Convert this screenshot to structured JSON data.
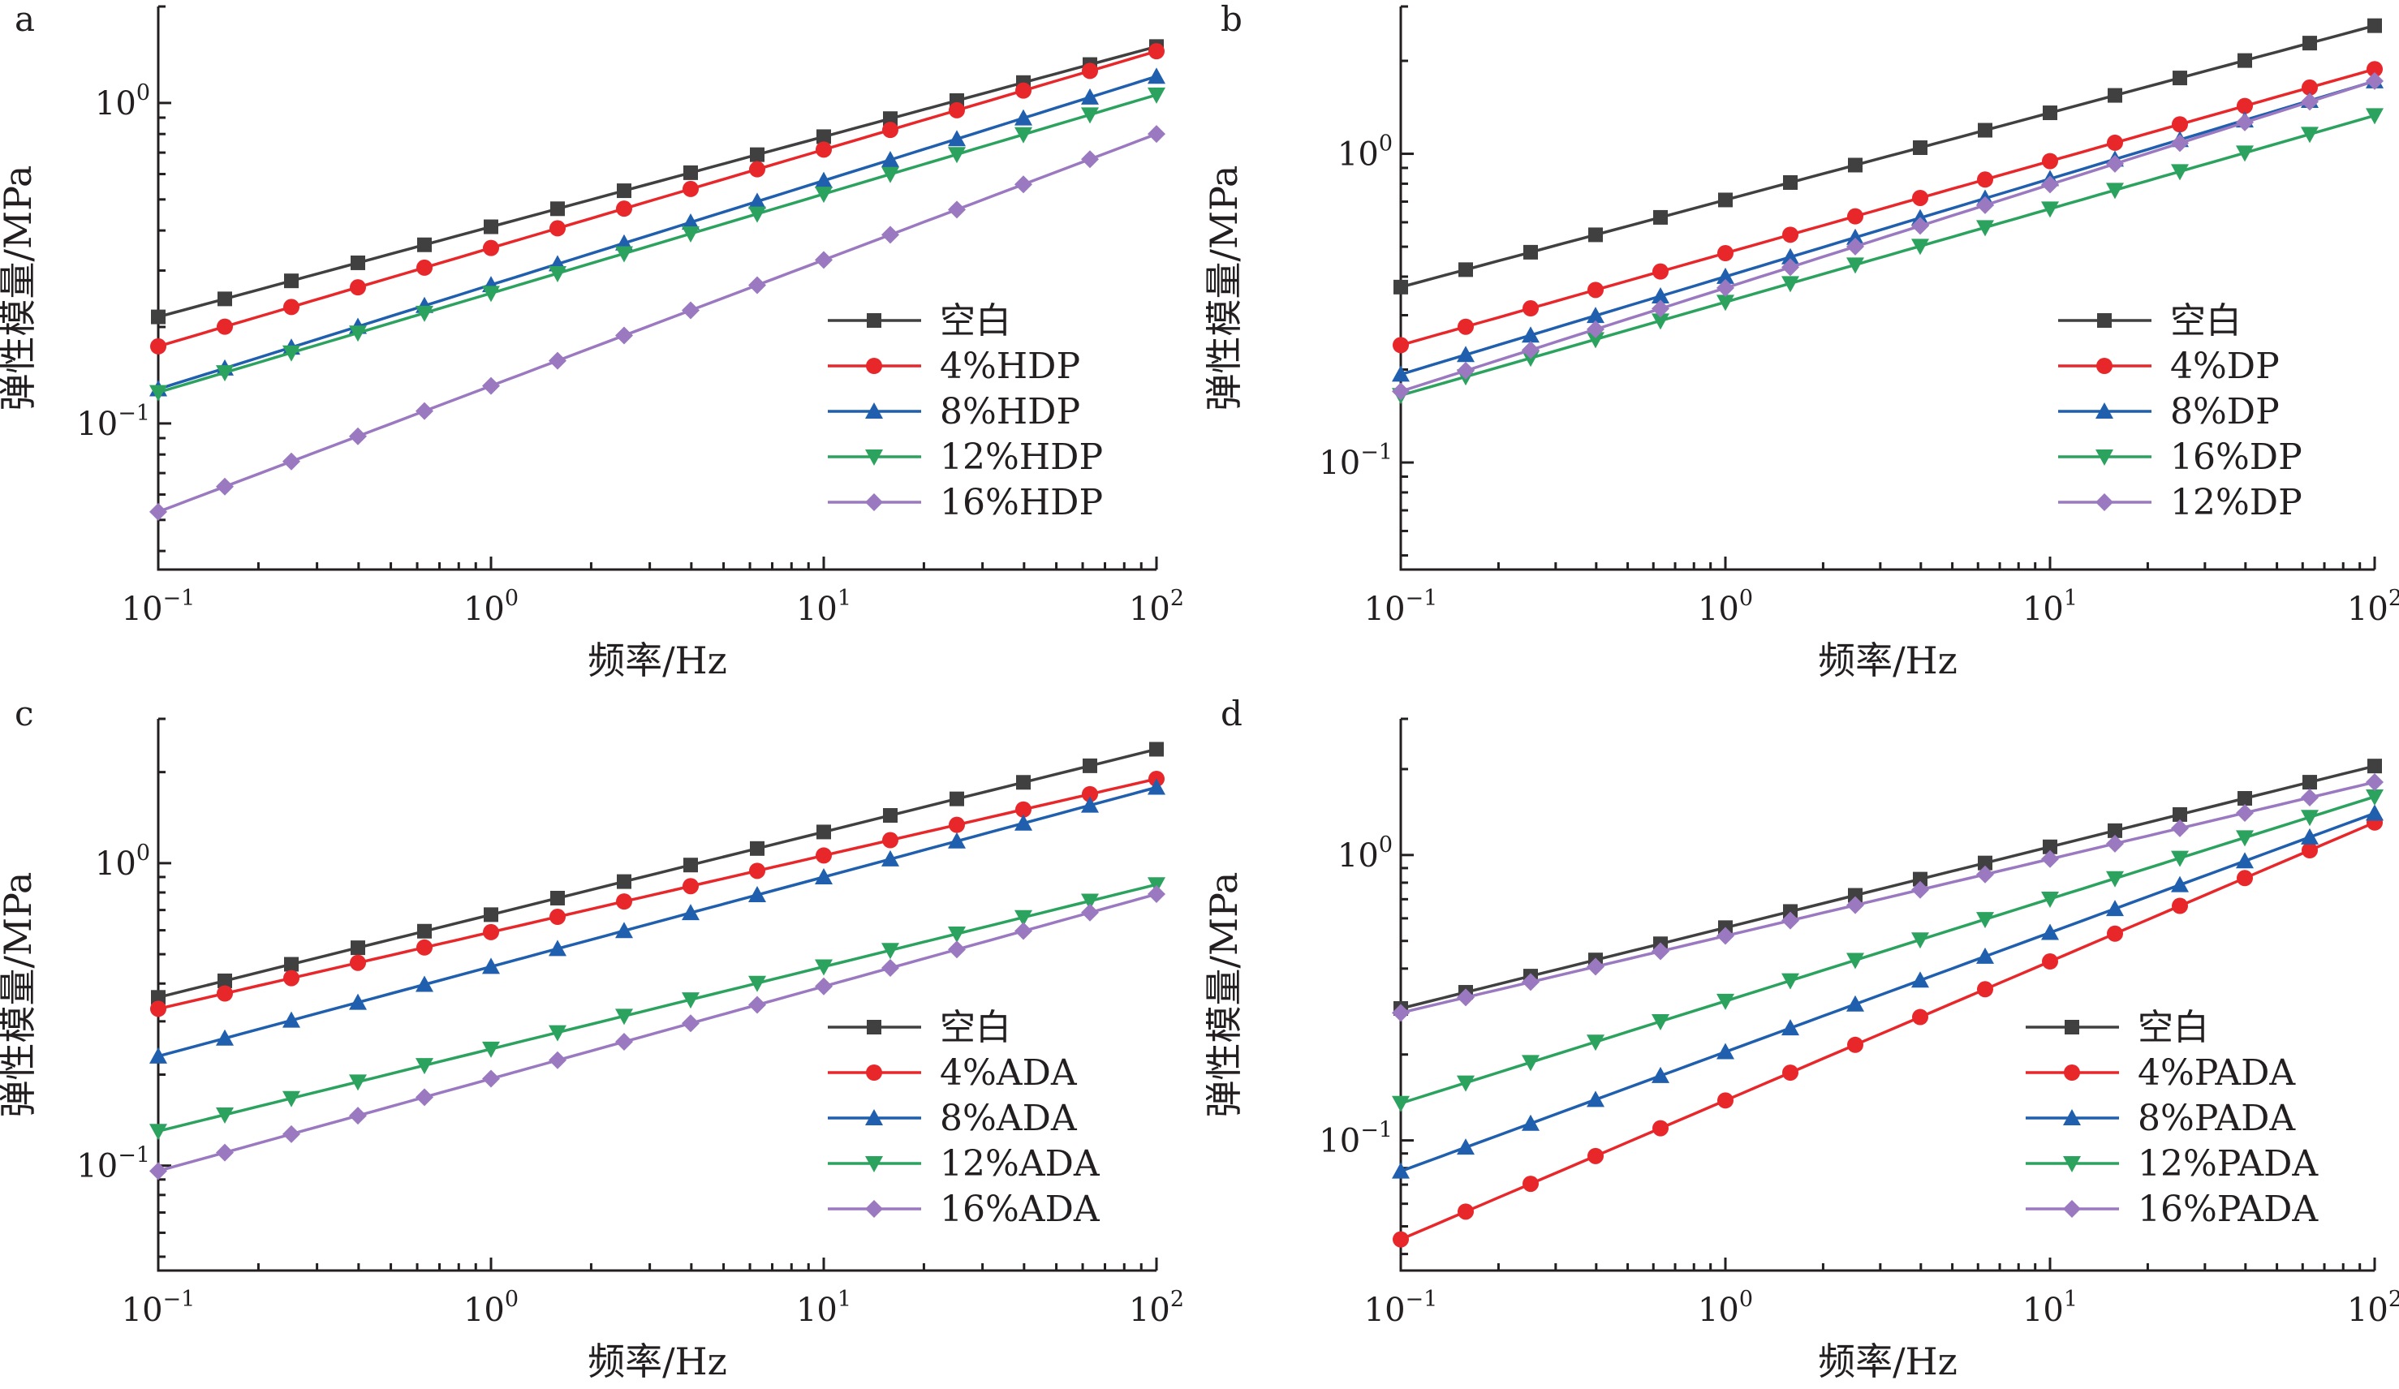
{
  "colors": {
    "axis": "#231f20",
    "black": "#404040",
    "red": "#e8272b",
    "blue": "#1f5fae",
    "green": "#2ca25f",
    "purple": "#9b79c1"
  },
  "chart_data": [
    {
      "panel_label": "a",
      "type": "line",
      "xlabel": "频率/Hz",
      "ylabel": "弹性模量/MPa",
      "xscale": "log",
      "yscale": "log",
      "xlim": [
        0.1,
        100
      ],
      "ylim": [
        0.035,
        2.0
      ],
      "xticks": [
        {
          "value": 0.1,
          "base": "10",
          "exp": "−1"
        },
        {
          "value": 1,
          "base": "10",
          "exp": "0"
        },
        {
          "value": 10,
          "base": "10",
          "exp": "1"
        },
        {
          "value": 100,
          "base": "10",
          "exp": "2"
        }
      ],
      "yticks": [
        {
          "value": 0.1,
          "base": "10",
          "exp": "−1"
        },
        {
          "value": 1,
          "base": "10",
          "exp": "0"
        }
      ],
      "legend_position": "right",
      "series": [
        {
          "name": "空白",
          "color": "#404040",
          "marker": "square",
          "y0": 0.215,
          "y1": 1.5
        },
        {
          "name": "4%HDP",
          "color": "#e8272b",
          "marker": "circle",
          "y0": 0.174,
          "y1": 1.45
        },
        {
          "name": "8%HDP",
          "color": "#1f5fae",
          "marker": "triangle-up",
          "y0": 0.128,
          "y1": 1.21
        },
        {
          "name": "12%HDP",
          "color": "#2ca25f",
          "marker": "triangle-down",
          "y0": 0.125,
          "y1": 1.06
        },
        {
          "name": "16%HDP",
          "color": "#9b79c1",
          "marker": "diamond",
          "y0": 0.053,
          "y1": 0.8
        }
      ]
    },
    {
      "panel_label": "b",
      "type": "line",
      "xlabel": "频率/Hz",
      "ylabel": "弹性模量/MPa",
      "xscale": "log",
      "yscale": "log",
      "xlim": [
        0.1,
        100
      ],
      "ylim": [
        0.045,
        3.0
      ],
      "xticks": [
        {
          "value": 0.1,
          "base": "10",
          "exp": "−1"
        },
        {
          "value": 1,
          "base": "10",
          "exp": "0"
        },
        {
          "value": 10,
          "base": "10",
          "exp": "1"
        },
        {
          "value": 100,
          "base": "10",
          "exp": "2"
        }
      ],
      "yticks": [
        {
          "value": 0.1,
          "base": "10",
          "exp": "−1"
        },
        {
          "value": 1,
          "base": "10",
          "exp": "0"
        }
      ],
      "legend_position": "right",
      "series": [
        {
          "name": "空白",
          "color": "#404040",
          "marker": "square",
          "y0": 0.37,
          "y1": 2.6
        },
        {
          "name": "4%DP",
          "color": "#e8272b",
          "marker": "circle",
          "y0": 0.24,
          "y1": 1.88
        },
        {
          "name": "8%DP",
          "color": "#1f5fae",
          "marker": "triangle-up",
          "y0": 0.193,
          "y1": 1.72
        },
        {
          "name": "16%DP",
          "color": "#2ca25f",
          "marker": "triangle-down",
          "y0": 0.165,
          "y1": 1.33
        },
        {
          "name": "12%DP",
          "color": "#9b79c1",
          "marker": "diamond",
          "y0": 0.17,
          "y1": 1.72
        }
      ]
    },
    {
      "panel_label": "c",
      "type": "line",
      "xlabel": "频率/Hz",
      "ylabel": "弹性模量/MPa",
      "xscale": "log",
      "yscale": "log",
      "xlim": [
        0.1,
        100
      ],
      "ylim": [
        0.045,
        3.0
      ],
      "xticks": [
        {
          "value": 0.1,
          "base": "10",
          "exp": "−1"
        },
        {
          "value": 1,
          "base": "10",
          "exp": "0"
        },
        {
          "value": 10,
          "base": "10",
          "exp": "1"
        },
        {
          "value": 100,
          "base": "10",
          "exp": "2"
        }
      ],
      "yticks": [
        {
          "value": 0.1,
          "base": "10",
          "exp": "−1"
        },
        {
          "value": 1,
          "base": "10",
          "exp": "0"
        }
      ],
      "legend_position": "right",
      "series": [
        {
          "name": "空白",
          "color": "#404040",
          "marker": "square",
          "y0": 0.36,
          "y1": 2.38
        },
        {
          "name": "4%ADA",
          "color": "#e8272b",
          "marker": "circle",
          "y0": 0.33,
          "y1": 1.9
        },
        {
          "name": "8%ADA",
          "color": "#1f5fae",
          "marker": "triangle-up",
          "y0": 0.23,
          "y1": 1.78
        },
        {
          "name": "12%ADA",
          "color": "#2ca25f",
          "marker": "triangle-down",
          "y0": 0.13,
          "y1": 0.85
        },
        {
          "name": "16%ADA",
          "color": "#9b79c1",
          "marker": "diamond",
          "y0": 0.096,
          "y1": 0.79
        }
      ]
    },
    {
      "panel_label": "d",
      "type": "line",
      "xlabel": "频率/Hz",
      "ylabel": "弹性模量/MPa",
      "xscale": "log",
      "yscale": "log",
      "xlim": [
        0.1,
        100
      ],
      "ylim": [
        0.035,
        3.0
      ],
      "xticks": [
        {
          "value": 0.1,
          "base": "10",
          "exp": "−1"
        },
        {
          "value": 1,
          "base": "10",
          "exp": "0"
        },
        {
          "value": 10,
          "base": "10",
          "exp": "1"
        },
        {
          "value": 100,
          "base": "10",
          "exp": "2"
        }
      ],
      "yticks": [
        {
          "value": 0.1,
          "base": "10",
          "exp": "−1"
        },
        {
          "value": 1,
          "base": "10",
          "exp": "0"
        }
      ],
      "legend_position": "right",
      "series": [
        {
          "name": "空白",
          "color": "#404040",
          "marker": "square",
          "y0": 0.29,
          "y1": 2.05
        },
        {
          "name": "4%PADA",
          "color": "#e8272b",
          "marker": "circle",
          "y0": 0.045,
          "y1": 1.3
        },
        {
          "name": "8%PADA",
          "color": "#1f5fae",
          "marker": "triangle-up",
          "y0": 0.078,
          "y1": 1.4
        },
        {
          "name": "12%PADA",
          "color": "#2ca25f",
          "marker": "triangle-down",
          "y0": 0.135,
          "y1": 1.6
        },
        {
          "name": "16%PADA",
          "color": "#9b79c1",
          "marker": "diamond",
          "y0": 0.28,
          "y1": 1.8
        }
      ]
    }
  ]
}
